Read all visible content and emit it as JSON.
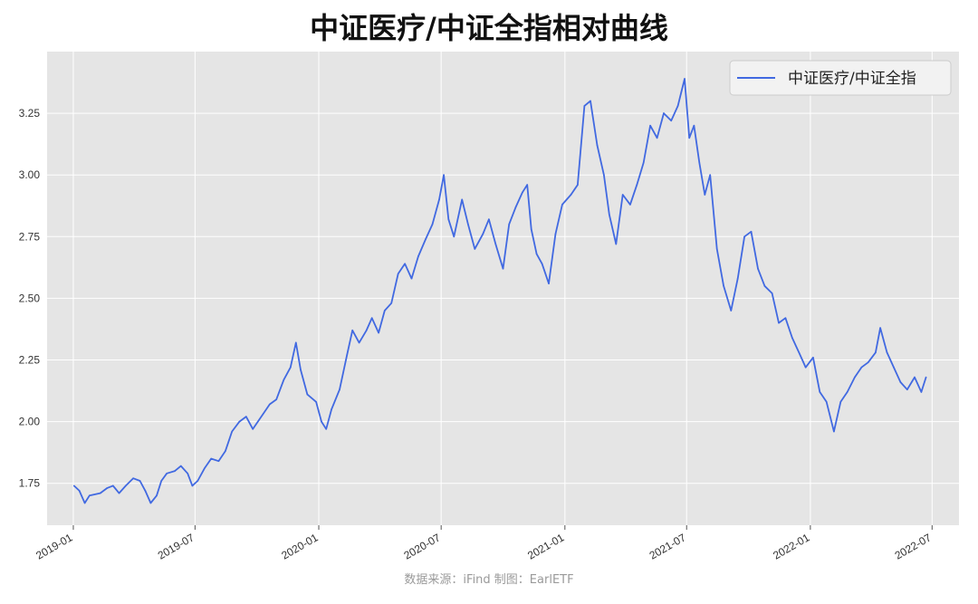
{
  "title": "中证医疗/中证全指相对曲线",
  "credit": "数据来源：iFind 制图：EarlETF",
  "colors": {
    "plot_bg": "#e5e5e5",
    "grid": "#ffffff",
    "line": "#4169e1",
    "legend_bg": "#f2f2f2"
  },
  "chart_data": {
    "type": "line",
    "title": "中证医疗/中证全指相对曲线",
    "xlabel": "",
    "ylabel": "",
    "xlim": [
      "2018-11-23",
      "2022-08-10"
    ],
    "ylim": [
      1.58,
      3.5
    ],
    "grid": true,
    "legend": "top-right",
    "x_ticks": [
      "2019-01",
      "2019-07",
      "2020-01",
      "2020-07",
      "2021-01",
      "2021-07",
      "2022-01",
      "2022-07"
    ],
    "y_ticks": [
      "1.75",
      "2.00",
      "2.25",
      "2.50",
      "2.75",
      "3.00",
      "3.25"
    ],
    "series": [
      {
        "name": "中证医疗/中证全指",
        "points": [
          [
            "2019-01-02",
            1.74
          ],
          [
            "2019-01-10",
            1.72
          ],
          [
            "2019-01-18",
            1.67
          ],
          [
            "2019-01-25",
            1.7
          ],
          [
            "2019-02-10",
            1.71
          ],
          [
            "2019-02-20",
            1.73
          ],
          [
            "2019-03-01",
            1.74
          ],
          [
            "2019-03-10",
            1.71
          ],
          [
            "2019-03-20",
            1.74
          ],
          [
            "2019-03-31",
            1.77
          ],
          [
            "2019-04-10",
            1.76
          ],
          [
            "2019-04-18",
            1.72
          ],
          [
            "2019-04-26",
            1.67
          ],
          [
            "2019-05-05",
            1.7
          ],
          [
            "2019-05-12",
            1.76
          ],
          [
            "2019-05-20",
            1.79
          ],
          [
            "2019-06-01",
            1.8
          ],
          [
            "2019-06-10",
            1.82
          ],
          [
            "2019-06-20",
            1.79
          ],
          [
            "2019-06-27",
            1.74
          ],
          [
            "2019-07-05",
            1.76
          ],
          [
            "2019-07-15",
            1.81
          ],
          [
            "2019-07-25",
            1.85
          ],
          [
            "2019-08-05",
            1.84
          ],
          [
            "2019-08-15",
            1.88
          ],
          [
            "2019-08-25",
            1.96
          ],
          [
            "2019-09-05",
            2.0
          ],
          [
            "2019-09-15",
            2.02
          ],
          [
            "2019-09-25",
            1.97
          ],
          [
            "2019-10-10",
            2.03
          ],
          [
            "2019-10-20",
            2.07
          ],
          [
            "2019-10-30",
            2.09
          ],
          [
            "2019-11-10",
            2.17
          ],
          [
            "2019-11-20",
            2.22
          ],
          [
            "2019-11-28",
            2.32
          ],
          [
            "2019-12-05",
            2.21
          ],
          [
            "2019-12-15",
            2.11
          ],
          [
            "2019-12-28",
            2.08
          ],
          [
            "2020-01-05",
            2.0
          ],
          [
            "2020-01-12",
            1.97
          ],
          [
            "2020-01-20",
            2.05
          ],
          [
            "2020-02-01",
            2.13
          ],
          [
            "2020-02-12",
            2.27
          ],
          [
            "2020-02-20",
            2.37
          ],
          [
            "2020-03-01",
            2.32
          ],
          [
            "2020-03-12",
            2.37
          ],
          [
            "2020-03-20",
            2.42
          ],
          [
            "2020-03-30",
            2.36
          ],
          [
            "2020-04-08",
            2.45
          ],
          [
            "2020-04-18",
            2.48
          ],
          [
            "2020-04-28",
            2.6
          ],
          [
            "2020-05-08",
            2.64
          ],
          [
            "2020-05-18",
            2.58
          ],
          [
            "2020-05-28",
            2.67
          ],
          [
            "2020-06-08",
            2.74
          ],
          [
            "2020-06-18",
            2.8
          ],
          [
            "2020-06-28",
            2.9
          ],
          [
            "2020-07-05",
            3.0
          ],
          [
            "2020-07-12",
            2.82
          ],
          [
            "2020-07-20",
            2.75
          ],
          [
            "2020-08-01",
            2.9
          ],
          [
            "2020-08-10",
            2.8
          ],
          [
            "2020-08-20",
            2.7
          ],
          [
            "2020-09-01",
            2.76
          ],
          [
            "2020-09-10",
            2.82
          ],
          [
            "2020-09-20",
            2.72
          ],
          [
            "2020-10-01",
            2.62
          ],
          [
            "2020-10-10",
            2.8
          ],
          [
            "2020-10-20",
            2.87
          ],
          [
            "2020-10-30",
            2.93
          ],
          [
            "2020-11-06",
            2.96
          ],
          [
            "2020-11-12",
            2.78
          ],
          [
            "2020-11-20",
            2.68
          ],
          [
            "2020-11-28",
            2.64
          ],
          [
            "2020-12-08",
            2.56
          ],
          [
            "2020-12-18",
            2.76
          ],
          [
            "2020-12-28",
            2.88
          ],
          [
            "2021-01-10",
            2.92
          ],
          [
            "2021-01-20",
            2.96
          ],
          [
            "2021-01-30",
            3.28
          ],
          [
            "2021-02-08",
            3.3
          ],
          [
            "2021-02-18",
            3.12
          ],
          [
            "2021-02-28",
            3.0
          ],
          [
            "2021-03-08",
            2.84
          ],
          [
            "2021-03-18",
            2.72
          ],
          [
            "2021-03-28",
            2.92
          ],
          [
            "2021-04-08",
            2.88
          ],
          [
            "2021-04-18",
            2.96
          ],
          [
            "2021-04-28",
            3.05
          ],
          [
            "2021-05-08",
            3.2
          ],
          [
            "2021-05-18",
            3.15
          ],
          [
            "2021-05-28",
            3.25
          ],
          [
            "2021-06-08",
            3.22
          ],
          [
            "2021-06-18",
            3.28
          ],
          [
            "2021-06-28",
            3.39
          ],
          [
            "2021-07-05",
            3.15
          ],
          [
            "2021-07-12",
            3.2
          ],
          [
            "2021-07-20",
            3.05
          ],
          [
            "2021-07-28",
            2.92
          ],
          [
            "2021-08-05",
            3.0
          ],
          [
            "2021-08-15",
            2.7
          ],
          [
            "2021-08-25",
            2.55
          ],
          [
            "2021-09-05",
            2.45
          ],
          [
            "2021-09-15",
            2.58
          ],
          [
            "2021-09-25",
            2.75
          ],
          [
            "2021-10-05",
            2.77
          ],
          [
            "2021-10-15",
            2.62
          ],
          [
            "2021-10-25",
            2.55
          ],
          [
            "2021-11-05",
            2.52
          ],
          [
            "2021-11-15",
            2.4
          ],
          [
            "2021-11-25",
            2.42
          ],
          [
            "2021-12-05",
            2.34
          ],
          [
            "2021-12-15",
            2.28
          ],
          [
            "2021-12-25",
            2.22
          ],
          [
            "2022-01-05",
            2.26
          ],
          [
            "2022-01-15",
            2.12
          ],
          [
            "2022-01-25",
            2.08
          ],
          [
            "2022-02-05",
            1.96
          ],
          [
            "2022-02-15",
            2.08
          ],
          [
            "2022-02-25",
            2.12
          ],
          [
            "2022-03-08",
            2.18
          ],
          [
            "2022-03-18",
            2.22
          ],
          [
            "2022-03-28",
            2.24
          ],
          [
            "2022-04-08",
            2.28
          ],
          [
            "2022-04-15",
            2.38
          ],
          [
            "2022-04-25",
            2.28
          ],
          [
            "2022-05-05",
            2.22
          ],
          [
            "2022-05-15",
            2.16
          ],
          [
            "2022-05-25",
            2.13
          ],
          [
            "2022-06-05",
            2.18
          ],
          [
            "2022-06-15",
            2.12
          ],
          [
            "2022-06-22",
            2.18
          ]
        ]
      }
    ]
  }
}
